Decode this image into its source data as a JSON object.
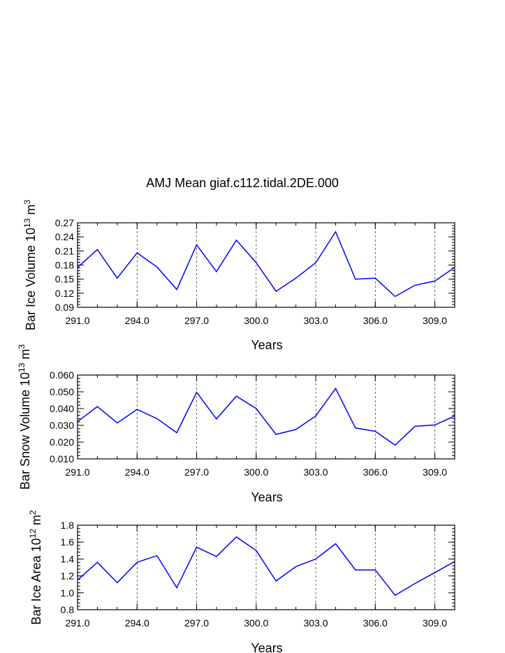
{
  "title": "AMJ Mean giaf.c112.tidal.2DE.000",
  "chart_data": [
    {
      "type": "line",
      "ylabel": "Bar Ice Volume 10",
      "ylabel_exp": "13",
      "ylabel_unit": " m",
      "ylabel_unit_exp": "3",
      "xlabel": "Years",
      "xlim": [
        291,
        310
      ],
      "ylim": [
        0.09,
        0.27
      ],
      "yticks": [
        "0.09",
        "0.12",
        "0.15",
        "0.18",
        "0.21",
        "0.24",
        "0.27"
      ],
      "xticks": [
        "291.0",
        "294.0",
        "297.0",
        "300.0",
        "303.0",
        "306.0",
        "309.0"
      ],
      "grid": "dashed vertical at major x ticks",
      "line_color": "#0000ff",
      "x": [
        291,
        292,
        293,
        294,
        295,
        296,
        297,
        298,
        299,
        300,
        301,
        302,
        303,
        304,
        305,
        306,
        307,
        308,
        309,
        310
      ],
      "y": [
        0.175,
        0.213,
        0.152,
        0.206,
        0.176,
        0.128,
        0.223,
        0.166,
        0.233,
        0.185,
        0.124,
        0.152,
        0.185,
        0.251,
        0.15,
        0.152,
        0.113,
        0.137,
        0.146,
        0.175
      ]
    },
    {
      "type": "line",
      "ylabel": "Bar Snow Volume 10",
      "ylabel_exp": "13",
      "ylabel_unit": " m",
      "ylabel_unit_exp": "3",
      "xlabel": "Years",
      "xlim": [
        291,
        310
      ],
      "ylim": [
        0.01,
        0.06
      ],
      "yticks": [
        "0.010",
        "0.020",
        "0.030",
        "0.040",
        "0.050",
        "0.060"
      ],
      "xticks": [
        "291.0",
        "294.0",
        "297.0",
        "300.0",
        "303.0",
        "306.0",
        "309.0"
      ],
      "grid": "dashed vertical at major x ticks",
      "line_color": "#0000ff",
      "x": [
        291,
        292,
        293,
        294,
        295,
        296,
        297,
        298,
        299,
        300,
        301,
        302,
        303,
        304,
        305,
        306,
        307,
        308,
        309,
        310
      ],
      "y": [
        0.0322,
        0.0412,
        0.0314,
        0.0395,
        0.034,
        0.0256,
        0.0497,
        0.0338,
        0.0474,
        0.04,
        0.0246,
        0.0275,
        0.0356,
        0.052,
        0.0284,
        0.0264,
        0.0182,
        0.0294,
        0.0302,
        0.0356
      ]
    },
    {
      "type": "line",
      "ylabel": "Bar Ice Area 10",
      "ylabel_exp": "12",
      "ylabel_unit": " m",
      "ylabel_unit_exp": "2",
      "xlabel": "Years",
      "xlim": [
        291,
        310
      ],
      "ylim": [
        0.8,
        1.8
      ],
      "yticks": [
        "0.8",
        "1.0",
        "1.2",
        "1.4",
        "1.6",
        "1.8"
      ],
      "xticks": [
        "291.0",
        "294.0",
        "297.0",
        "300.0",
        "303.0",
        "306.0",
        "309.0"
      ],
      "grid": "dashed vertical at major x ticks",
      "line_color": "#0000ff",
      "x": [
        291,
        292,
        293,
        294,
        295,
        296,
        297,
        298,
        299,
        300,
        301,
        302,
        303,
        304,
        305,
        306,
        307,
        308,
        309,
        310
      ],
      "y": [
        1.15,
        1.36,
        1.12,
        1.36,
        1.44,
        1.06,
        1.54,
        1.43,
        1.66,
        1.5,
        1.14,
        1.31,
        1.4,
        1.58,
        1.27,
        1.27,
        0.97,
        1.11,
        1.24,
        1.37
      ]
    }
  ]
}
